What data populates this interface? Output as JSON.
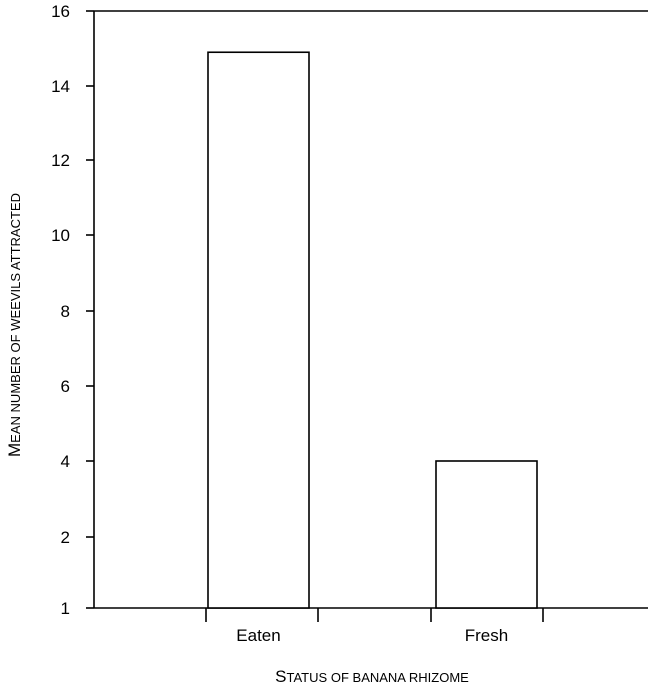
{
  "chart_data": {
    "type": "bar",
    "categories": [
      "Eaten",
      "Fresh"
    ],
    "values": [
      14.9,
      4.0
    ],
    "xlabel": "Status of banana rhizome",
    "ylabel": "Mean number of weevils attracted",
    "yticks": [
      1,
      2,
      4,
      6,
      8,
      10,
      12,
      14,
      16
    ],
    "ylim": [
      1,
      16
    ],
    "grid": false,
    "bar_color": "#ffffff",
    "edge_color": "#000000"
  }
}
